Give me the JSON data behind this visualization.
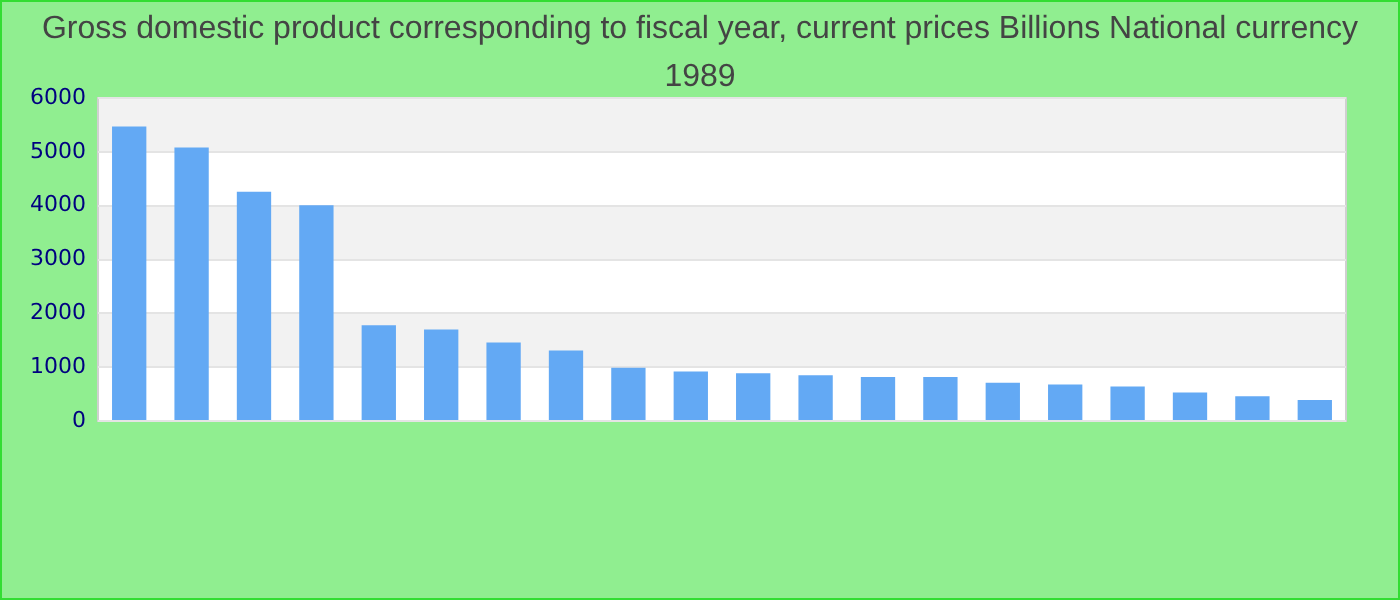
{
  "chart_data": {
    "type": "bar",
    "title": "Gross domestic product corresponding to fiscal year, current prices Billions National currency 1989",
    "categories": [
      null,
      null,
      null,
      null,
      null,
      null,
      null,
      null,
      null,
      null,
      null,
      null,
      null,
      null,
      null,
      null,
      null,
      null,
      null,
      null
    ],
    "values": [
      5470,
      5080,
      4260,
      4010,
      1780,
      1700,
      1460,
      1310,
      990,
      920,
      890,
      850,
      820,
      820,
      710,
      680,
      640,
      530,
      460,
      390
    ],
    "color": "#63a9f4",
    "ylim": [
      0,
      6000
    ],
    "yticks": [
      0,
      1000,
      2000,
      3000,
      4000,
      5000,
      6000
    ],
    "grid": true
  }
}
